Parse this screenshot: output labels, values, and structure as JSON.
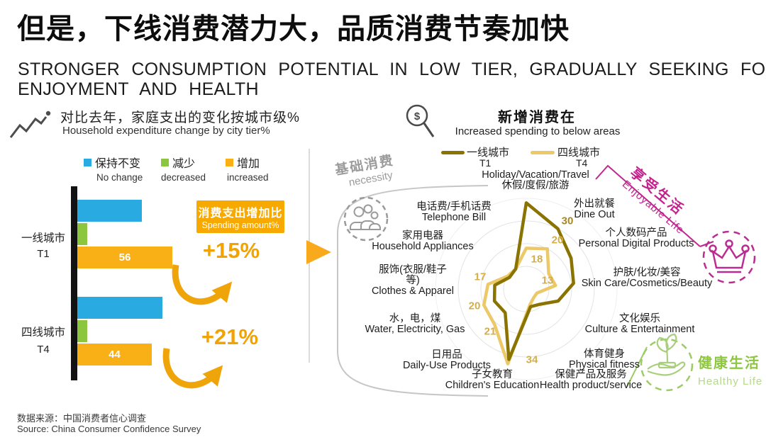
{
  "title": {
    "zh": "但是，下线消费潜力大，品质消费节奏加快",
    "en_line1": "STRONGER CONSUMPTION POTENTIAL IN LOW TIER, GRADUALLY SEEKING FOR",
    "en_line2": "ENJOYMENT AND HEALTH"
  },
  "source": {
    "zh": "数据来源：中国消费者信心调查",
    "en": "Source: China Consumer Confidence Survey"
  },
  "left_panel": {
    "header_zh": "对比去年，家庭支出的变化按城市级%",
    "header_en": "Household expenditure change by city tier%",
    "categories": [
      {
        "zh": "一线城市",
        "tier": "T1"
      },
      {
        "zh": "四线城市",
        "tier": "T4"
      }
    ],
    "spending_box": {
      "zh": "消费支出增加比",
      "en": "Spending amount%"
    },
    "annotations": [
      {
        "text": "+15%"
      },
      {
        "text": "+21%"
      }
    ]
  },
  "right_panel": {
    "header_zh": "新增消费在",
    "header_en": "Increased spending to below areas",
    "magnifier_symbol": "$",
    "necessity": {
      "zh": "基础消费",
      "en": "necessity"
    },
    "enjoyable": {
      "zh": "享受生活",
      "en": "Enjoyable Life"
    },
    "healthy": {
      "zh": "健康生活",
      "en": "Healthy Life"
    }
  },
  "chart_data": [
    {
      "type": "bar",
      "orientation": "horizontal",
      "unit": "%",
      "categories": [
        "一线城市 T1",
        "四线城市 T4"
      ],
      "series": [
        {
          "name_zh": "保持不变",
          "name_en": "No change",
          "color": "#29abe2",
          "values": [
            38,
            50
          ]
        },
        {
          "name_zh": "减少",
          "name_en": "decreased",
          "color": "#8cc63f",
          "values": [
            6,
            6
          ]
        },
        {
          "name_zh": "增加",
          "name_en": "increased",
          "color": "#f9b016",
          "values": [
            56,
            44
          ]
        }
      ],
      "data_labels": [
        {
          "series": "增加",
          "category": "一线城市 T1",
          "value": 56
        },
        {
          "series": "增加",
          "category": "四线城市 T4",
          "value": 44
        }
      ],
      "annotations": [
        "+15%",
        "+21%"
      ]
    },
    {
      "type": "radar",
      "max": 40,
      "rings": [
        10,
        20,
        30,
        40
      ],
      "axes": [
        {
          "zh": "休假/度假/旅游",
          "en": "Holiday/Vacation/Travel",
          "display_lines": [
            "Holiday/Vacation/Travel",
            "休假/度假/旅游"
          ]
        },
        {
          "zh": "外出就餐",
          "en": "Dine Out",
          "display_lines": [
            "外出就餐",
            "Dine Out"
          ]
        },
        {
          "zh": "个人数码产品",
          "en": "Personal Digital Products",
          "display_lines": [
            "个人数码产品",
            "Personal Digital Products"
          ]
        },
        {
          "zh": "护肤/化妆/美容",
          "en": "Skin Care/Cosmetics/Beauty",
          "display_lines": [
            "护肤/化妆/美容",
            "Skin Care/Cosmetics/Beauty"
          ]
        },
        {
          "zh": "文化娱乐",
          "en": "Culture & Entertainment",
          "display_lines": [
            "文化娱乐",
            "Culture & Entertainment"
          ]
        },
        {
          "zh": "体育健身",
          "en": "Physical fitness",
          "display_lines": [
            "体育健身",
            "Physical fitness"
          ]
        },
        {
          "zh": "保健产品及服务",
          "en": "Health product/service",
          "display_lines": [
            "保健产品及服务",
            "Health product/service"
          ]
        },
        {
          "zh": "子女教育",
          "en": "Children's Education",
          "display_lines": [
            "子女教育",
            "Children's Education"
          ]
        },
        {
          "zh": "日用品",
          "en": "Daily-Use Products",
          "display_lines": [
            "日用品",
            "Daily-Use Products"
          ]
        },
        {
          "zh": "水，电，煤",
          "en": "Water, Electricity, Gas",
          "display_lines": [
            "水，电，煤",
            "Water, Electricity, Gas"
          ]
        },
        {
          "zh": "服饰(衣服/鞋子等)",
          "en": "Clothes & Apparel",
          "display_lines": [
            "服饰(衣服/鞋子",
            "等)",
            "Clothes & Apparel"
          ]
        },
        {
          "zh": "家用电器",
          "en": "Household Appliances",
          "display_lines": [
            "家用电器",
            "Household Appliances"
          ]
        },
        {
          "zh": "电话费/手机话费",
          "en": "Telephone Bill",
          "display_lines": [
            "电话费/手机话费",
            "Telephone Bill"
          ]
        }
      ],
      "series": [
        {
          "name_zh": "一线城市",
          "name_en": "T1",
          "color": "#8a7300",
          "values": [
            38,
            30,
            24,
            21,
            15,
            9,
            8,
            32,
            14,
            15,
            14,
            9,
            10
          ]
        },
        {
          "name_zh": "四线城市",
          "name_en": "T4",
          "color": "#ecc869",
          "values": [
            18,
            20,
            12,
            13,
            5,
            5,
            7,
            34,
            21,
            20,
            17,
            10,
            10
          ]
        }
      ],
      "shown_value_labels": [
        {
          "series": "T4",
          "axis": "休假/度假/旅游",
          "value": 18
        },
        {
          "series": "T1",
          "axis": "外出就餐",
          "value": 30
        },
        {
          "series": "T4",
          "axis": "外出就餐",
          "value": 20
        },
        {
          "series": "T4",
          "axis": "护肤/化妆/美容",
          "value": 13
        },
        {
          "series": "T4",
          "axis": "服饰(衣服/鞋子等)",
          "value": 17
        },
        {
          "series": "T4",
          "axis": "水，电，煤",
          "value": 20
        },
        {
          "series": "T4",
          "axis": "日用品",
          "value": 21
        },
        {
          "series": "T4",
          "axis": "子女教育",
          "value": 34
        }
      ]
    }
  ]
}
